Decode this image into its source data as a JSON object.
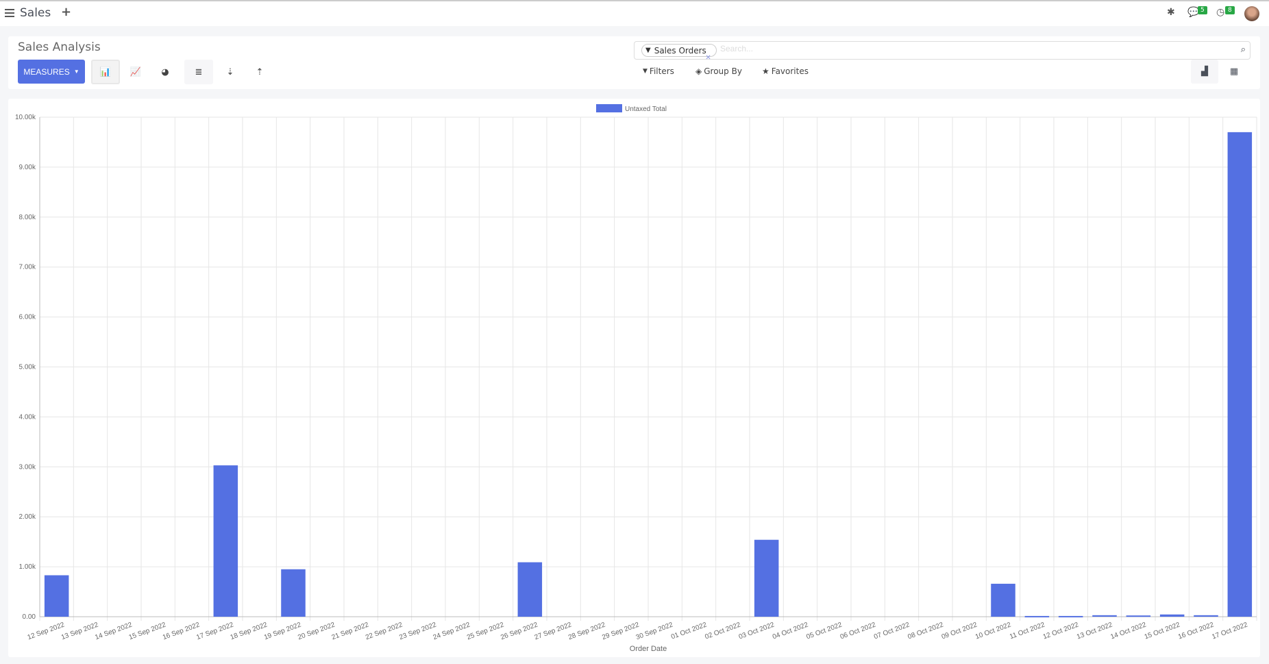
{
  "topbar": {
    "app_name": "Sales",
    "messages_count": "5",
    "activities_count": "8"
  },
  "control_panel": {
    "title": "Sales Analysis",
    "measures_label": "MEASURES",
    "search": {
      "facet_label": "Sales Orders",
      "placeholder": "Search..."
    },
    "filters_label": "Filters",
    "groupby_label": "Group By",
    "favorites_label": "Favorites"
  },
  "colors": {
    "accent": "#5470e2",
    "bar": "#5470e2",
    "badge": "#28a745"
  },
  "chart_data": {
    "type": "bar",
    "xlabel": "Order Date",
    "ylabel": "",
    "ylim": [
      0,
      10000
    ],
    "yticks": [
      "0.00",
      "1.00k",
      "2.00k",
      "3.00k",
      "4.00k",
      "5.00k",
      "6.00k",
      "7.00k",
      "8.00k",
      "9.00k",
      "10.00k"
    ],
    "grid": true,
    "legend": "top-center",
    "categories": [
      "12 Sep 2022",
      "13 Sep 2022",
      "14 Sep 2022",
      "15 Sep 2022",
      "16 Sep 2022",
      "17 Sep 2022",
      "18 Sep 2022",
      "19 Sep 2022",
      "20 Sep 2022",
      "21 Sep 2022",
      "22 Sep 2022",
      "23 Sep 2022",
      "24 Sep 2022",
      "25 Sep 2022",
      "26 Sep 2022",
      "27 Sep 2022",
      "28 Sep 2022",
      "29 Sep 2022",
      "30 Sep 2022",
      "01 Oct 2022",
      "02 Oct 2022",
      "03 Oct 2022",
      "04 Oct 2022",
      "05 Oct 2022",
      "06 Oct 2022",
      "07 Oct 2022",
      "08 Oct 2022",
      "09 Oct 2022",
      "10 Oct 2022",
      "11 Oct 2022",
      "12 Oct 2022",
      "13 Oct 2022",
      "14 Oct 2022",
      "15 Oct 2022",
      "16 Oct 2022",
      "17 Oct 2022"
    ],
    "series": [
      {
        "name": "Untaxed Total",
        "values": [
          830,
          0,
          0,
          0,
          0,
          3030,
          0,
          950,
          0,
          0,
          0,
          0,
          0,
          0,
          1090,
          0,
          0,
          0,
          0,
          0,
          0,
          1540,
          0,
          0,
          0,
          0,
          0,
          0,
          660,
          15,
          15,
          30,
          25,
          45,
          30,
          9700
        ]
      }
    ]
  }
}
